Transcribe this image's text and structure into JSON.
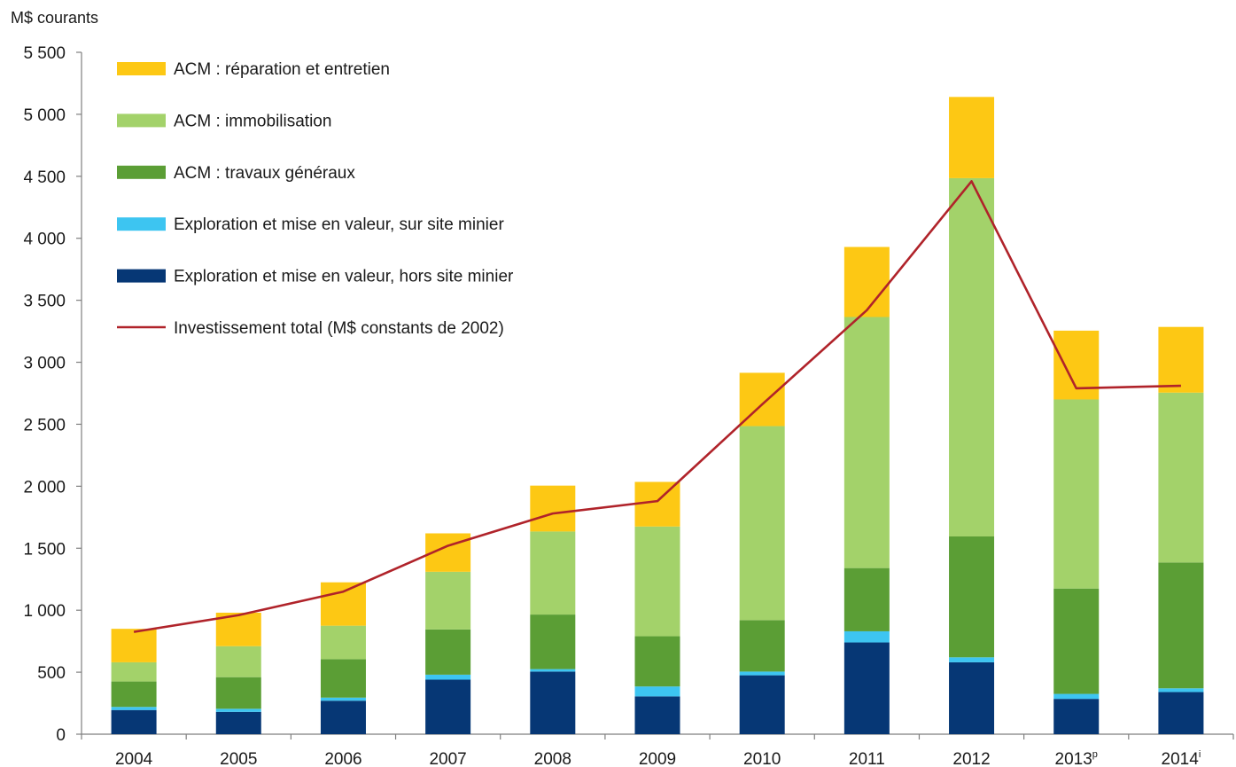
{
  "chart_data": {
    "type": "bar",
    "stacked": true,
    "ylabel": "M$ courants",
    "ylim": [
      0,
      5500
    ],
    "yticks": [
      0,
      500,
      1000,
      1500,
      2000,
      2500,
      3000,
      3500,
      4000,
      4500,
      5000,
      5500
    ],
    "ytick_labels": [
      "0",
      "500",
      "1 000",
      "1 500",
      "2 000",
      "2 500",
      "3 000",
      "3 500",
      "4 000",
      "4 500",
      "5 000",
      "5 500"
    ],
    "categories": [
      {
        "label": "2004",
        "sup": ""
      },
      {
        "label": "2005",
        "sup": ""
      },
      {
        "label": "2006",
        "sup": ""
      },
      {
        "label": "2007",
        "sup": ""
      },
      {
        "label": "2008",
        "sup": ""
      },
      {
        "label": "2009",
        "sup": ""
      },
      {
        "label": "2010",
        "sup": ""
      },
      {
        "label": "2011",
        "sup": ""
      },
      {
        "label": "2012",
        "sup": ""
      },
      {
        "label": "2013",
        "sup": "p"
      },
      {
        "label": "2014",
        "sup": "i"
      }
    ],
    "grid": false,
    "legend_position": "top-left",
    "series": [
      {
        "name": "Exploration et mise en valeur, hors site minier",
        "color": "#063775",
        "values": [
          195,
          180,
          270,
          440,
          505,
          305,
          475,
          740,
          580,
          285,
          340
        ]
      },
      {
        "name": "Exploration et mise en valeur, sur site minier",
        "color": "#3dc5f1",
        "values": [
          25,
          25,
          25,
          40,
          20,
          80,
          30,
          90,
          40,
          40,
          30
        ]
      },
      {
        "name": "ACM : travaux généraux",
        "color": "#5b9e35",
        "values": [
          205,
          255,
          310,
          365,
          440,
          405,
          415,
          510,
          975,
          850,
          1015
        ]
      },
      {
        "name": "ACM : immobilisation",
        "color": "#a3d26a",
        "values": [
          155,
          250,
          270,
          465,
          670,
          885,
          1565,
          2025,
          2890,
          1525,
          1370
        ]
      },
      {
        "name": "ACM : réparation et entretien",
        "color": "#fdc814",
        "values": [
          270,
          270,
          350,
          310,
          370,
          360,
          430,
          565,
          655,
          555,
          530
        ]
      }
    ],
    "line_series": {
      "name": "Investissement total (M$ constants de 2002)",
      "color": "#b0232a",
      "values": [
        825,
        960,
        1150,
        1520,
        1780,
        1880,
        2660,
        3420,
        4460,
        2790,
        2810
      ]
    },
    "legend_order": [
      "ACM : réparation et entretien",
      "ACM : immobilisation",
      "ACM : travaux généraux",
      "Exploration et mise en valeur, sur site minier",
      "Exploration et mise en valeur, hors site minier",
      "Investissement total (M$ constants de 2002)"
    ]
  }
}
